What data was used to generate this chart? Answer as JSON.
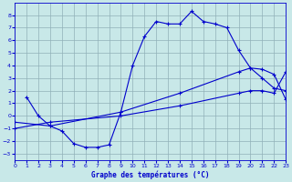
{
  "title": "Graphe des températures (°C)",
  "line1_x": [
    1,
    2,
    3,
    4,
    5,
    6,
    7,
    8,
    9,
    10,
    11,
    12,
    13,
    14,
    15,
    16,
    17,
    18,
    19,
    20,
    21,
    22,
    23
  ],
  "line1_y": [
    1.5,
    0.0,
    -0.8,
    -1.2,
    -2.2,
    -2.5,
    -2.5,
    -2.3,
    0.3,
    4.0,
    6.3,
    7.5,
    7.3,
    7.3,
    8.3,
    7.5,
    7.3,
    7.0,
    5.2,
    3.8,
    3.0,
    2.2,
    2.0
  ],
  "line2_x": [
    0,
    3,
    9,
    14,
    19,
    20,
    21,
    22,
    23
  ],
  "line2_y": [
    -0.5,
    -0.8,
    0.3,
    1.8,
    3.5,
    3.8,
    3.7,
    3.3,
    1.3
  ],
  "line3_x": [
    0,
    3,
    9,
    14,
    19,
    20,
    21,
    22,
    23
  ],
  "line3_y": [
    -1.0,
    -0.5,
    0.0,
    0.8,
    1.8,
    2.0,
    2.0,
    1.8,
    3.5
  ],
  "line_color": "#0000cc",
  "bg_color": "#c8e8e8",
  "grid_color": "#90b0b8",
  "xlim": [
    0,
    23
  ],
  "ylim": [
    -3.5,
    9.0
  ],
  "yticks": [
    -3,
    -2,
    -1,
    0,
    1,
    2,
    3,
    4,
    5,
    6,
    7,
    8
  ],
  "xticks": [
    0,
    1,
    2,
    3,
    4,
    5,
    6,
    7,
    8,
    9,
    10,
    11,
    12,
    13,
    14,
    15,
    16,
    17,
    18,
    19,
    20,
    21,
    22,
    23
  ]
}
